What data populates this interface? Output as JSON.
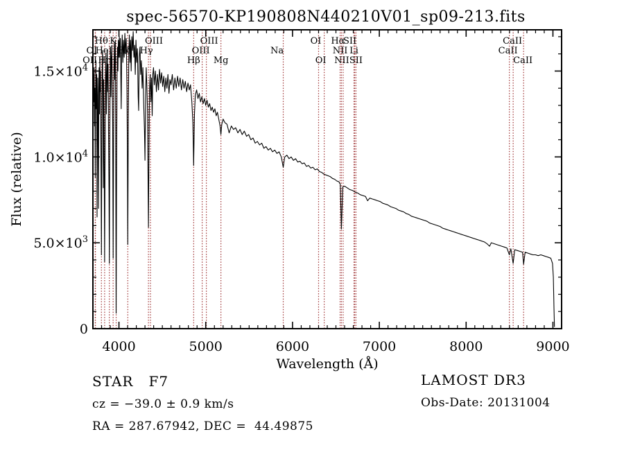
{
  "title": "spec-56570-KP190808N440210V01_sp09-213.fits",
  "footer": {
    "class_line": "STAR   F7",
    "cz_line": "cz = −39.0 ± 0.9 km/s",
    "radec_line": "RA = 287.67942, DEC =  44.49875",
    "survey": "LAMOST DR3",
    "obs_date": "Obs-Date: 20131004"
  },
  "chart_data": {
    "type": "line",
    "title": "spec-56570-KP190808N440210V01_sp09-213.fits",
    "xlabel": "Wavelength (Å)",
    "ylabel": "Flux (relative)",
    "xlim": [
      3700,
      9100
    ],
    "ylim": [
      0,
      17400
    ],
    "grid": false,
    "x_major_ticks": [
      4000,
      5000,
      6000,
      7000,
      8000,
      9000
    ],
    "x_minor_step": 100,
    "y_major_ticks": [
      {
        "v": 0,
        "m": "0",
        "e": ""
      },
      {
        "v": 5000,
        "m": "5.0×10",
        "e": "3"
      },
      {
        "v": 10000,
        "m": "1.0×10",
        "e": "4"
      },
      {
        "v": 15000,
        "m": "1.5×10",
        "e": "4"
      }
    ],
    "y_minor_step": 1000,
    "line_color": "#000000",
    "marker_color": "#9e3132",
    "spectral_lines": [
      {
        "label": "Hθ",
        "wavelength": 3798,
        "row": 1,
        "dx": 0
      },
      {
        "label": "K",
        "wavelength": 3933,
        "row": 1,
        "dx": 0
      },
      {
        "label": "OIII",
        "wavelength": 4363,
        "row": 1,
        "dx": 5
      },
      {
        "label": "OIII",
        "wavelength": 5007,
        "row": 1,
        "dx": 4
      },
      {
        "label": "OI",
        "wavelength": 6300,
        "row": 1,
        "dx": -4
      },
      {
        "label": "Hα",
        "wavelength": 6563,
        "row": 1,
        "dx": -5
      },
      {
        "label": "SII",
        "wavelength": 6716,
        "row": 1,
        "dx": -7
      },
      {
        "label": "CaII",
        "wavelength": 8542,
        "row": 1,
        "dx": -1
      },
      {
        "label": "OI",
        "wavelength": 3727,
        "row": 2,
        "dx": -5
      },
      {
        "label": "HeI",
        "wavelength": 3889,
        "row": 2,
        "dx": -8
      },
      {
        "label": "Hδ",
        "wavelength": 4102,
        "row": 2,
        "dx": -4
      },
      {
        "label": "Hγ",
        "wavelength": 4340,
        "row": 2,
        "dx": -3
      },
      {
        "label": "OIII",
        "wavelength": 4959,
        "row": 2,
        "dx": -2
      },
      {
        "label": "Na",
        "wavelength": 5893,
        "row": 2,
        "dx": -9
      },
      {
        "label": "NII",
        "wavelength": 6548,
        "row": 2,
        "dx": 0
      },
      {
        "label": "Li",
        "wavelength": 6708,
        "row": 2,
        "dx": 0
      },
      {
        "label": "CaII",
        "wavelength": 8498,
        "row": 2,
        "dx": -2
      },
      {
        "label": "OII",
        "wavelength": 3729,
        "row": 3,
        "dx": -8
      },
      {
        "label": "Hη",
        "wavelength": 3835,
        "row": 3,
        "dx": 0
      },
      {
        "label": "H",
        "wavelength": 3968,
        "row": 3,
        "dx": -4
      },
      {
        "label": "Hβ",
        "wavelength": 4861,
        "row": 3,
        "dx": 0
      },
      {
        "label": "Mg",
        "wavelength": 5175,
        "row": 3,
        "dx": 0
      },
      {
        "label": "OI",
        "wavelength": 6365,
        "row": 3,
        "dx": -5
      },
      {
        "label": "NII",
        "wavelength": 6583,
        "row": 3,
        "dx": -2
      },
      {
        "label": "SII",
        "wavelength": 6731,
        "row": 3,
        "dx": 0
      },
      {
        "label": "CaII",
        "wavelength": 8662,
        "row": 3,
        "dx": -1
      }
    ],
    "points": [
      [
        3700,
        100
      ],
      [
        3703,
        12500
      ],
      [
        3706,
        14800
      ],
      [
        3710,
        13200
      ],
      [
        3714,
        15200
      ],
      [
        3718,
        11800
      ],
      [
        3722,
        14000
      ],
      [
        3727,
        8800
      ],
      [
        3731,
        13500
      ],
      [
        3735,
        15600
      ],
      [
        3739,
        12800
      ],
      [
        3744,
        14800
      ],
      [
        3748,
        6500
      ],
      [
        3752,
        13000
      ],
      [
        3756,
        14600
      ],
      [
        3760,
        10500
      ],
      [
        3764,
        7000
      ],
      [
        3768,
        13800
      ],
      [
        3772,
        15200
      ],
      [
        3776,
        12500
      ],
      [
        3780,
        15800
      ],
      [
        3784,
        13800
      ],
      [
        3788,
        15000
      ],
      [
        3792,
        11000
      ],
      [
        3798,
        4300
      ],
      [
        3803,
        12000
      ],
      [
        3808,
        15600
      ],
      [
        3812,
        16200
      ],
      [
        3816,
        13500
      ],
      [
        3820,
        8200
      ],
      [
        3824,
        14500
      ],
      [
        3828,
        12000
      ],
      [
        3835,
        3900
      ],
      [
        3840,
        9500
      ],
      [
        3845,
        14800
      ],
      [
        3850,
        16000
      ],
      [
        3855,
        12500
      ],
      [
        3860,
        14500
      ],
      [
        3865,
        16200
      ],
      [
        3870,
        13800
      ],
      [
        3875,
        15400
      ],
      [
        3880,
        11500
      ],
      [
        3885,
        8000
      ],
      [
        3889,
        3800
      ],
      [
        3894,
        10500
      ],
      [
        3898,
        14500
      ],
      [
        3903,
        16300
      ],
      [
        3908,
        13500
      ],
      [
        3913,
        15800
      ],
      [
        3918,
        16500
      ],
      [
        3923,
        14200
      ],
      [
        3928,
        12000
      ],
      [
        3933,
        4100
      ],
      [
        3938,
        11000
      ],
      [
        3943,
        15200
      ],
      [
        3948,
        16600
      ],
      [
        3953,
        14500
      ],
      [
        3958,
        16800
      ],
      [
        3962,
        12500
      ],
      [
        3968,
        900
      ],
      [
        3973,
        9500
      ],
      [
        3978,
        14500
      ],
      [
        3983,
        16400
      ],
      [
        3988,
        15000
      ],
      [
        3993,
        16800
      ],
      [
        3998,
        15800
      ],
      [
        4004,
        17000
      ],
      [
        4010,
        15800
      ],
      [
        4016,
        16900
      ],
      [
        4022,
        14500
      ],
      [
        4026,
        12800
      ],
      [
        4032,
        16200
      ],
      [
        4038,
        17100
      ],
      [
        4045,
        15500
      ],
      [
        4052,
        16800
      ],
      [
        4060,
        15800
      ],
      [
        4068,
        17200
      ],
      [
        4076,
        16000
      ],
      [
        4084,
        16900
      ],
      [
        4092,
        14000
      ],
      [
        4097,
        10500
      ],
      [
        4102,
        4900
      ],
      [
        4108,
        12500
      ],
      [
        4114,
        16000
      ],
      [
        4120,
        17100
      ],
      [
        4127,
        15500
      ],
      [
        4134,
        16800
      ],
      [
        4141,
        15000
      ],
      [
        4148,
        17000
      ],
      [
        4156,
        16200
      ],
      [
        4164,
        17300
      ],
      [
        4172,
        15800
      ],
      [
        4180,
        16500
      ],
      [
        4188,
        14800
      ],
      [
        4196,
        16800
      ],
      [
        4205,
        15500
      ],
      [
        4213,
        16300
      ],
      [
        4222,
        13500
      ],
      [
        4227,
        12700
      ],
      [
        4234,
        15800
      ],
      [
        4242,
        16400
      ],
      [
        4250,
        14800
      ],
      [
        4258,
        15600
      ],
      [
        4267,
        14000
      ],
      [
        4276,
        15200
      ],
      [
        4285,
        13200
      ],
      [
        4294,
        11500
      ],
      [
        4300,
        9800
      ],
      [
        4307,
        13500
      ],
      [
        4314,
        15200
      ],
      [
        4322,
        14000
      ],
      [
        4330,
        12500
      ],
      [
        4335,
        9000
      ],
      [
        4340,
        5900
      ],
      [
        4346,
        10500
      ],
      [
        4352,
        13800
      ],
      [
        4360,
        14800
      ],
      [
        4368,
        13200
      ],
      [
        4376,
        14600
      ],
      [
        4383,
        12400
      ],
      [
        4390,
        14800
      ],
      [
        4398,
        15200
      ],
      [
        4408,
        14200
      ],
      [
        4420,
        15000
      ],
      [
        4432,
        13800
      ],
      [
        4444,
        14800
      ],
      [
        4456,
        13900
      ],
      [
        4468,
        15100
      ],
      [
        4480,
        14300
      ],
      [
        4492,
        14900
      ],
      [
        4504,
        14100
      ],
      [
        4516,
        14700
      ],
      [
        4528,
        13800
      ],
      [
        4540,
        14600
      ],
      [
        4552,
        14000
      ],
      [
        4564,
        14800
      ],
      [
        4576,
        13700
      ],
      [
        4588,
        14500
      ],
      [
        4600,
        14200
      ],
      [
        4615,
        14800
      ],
      [
        4630,
        13900
      ],
      [
        4645,
        14600
      ],
      [
        4660,
        14000
      ],
      [
        4675,
        14700
      ],
      [
        4690,
        14100
      ],
      [
        4705,
        14600
      ],
      [
        4720,
        13900
      ],
      [
        4735,
        14500
      ],
      [
        4750,
        14000
      ],
      [
        4765,
        14400
      ],
      [
        4780,
        13800
      ],
      [
        4795,
        14300
      ],
      [
        4810,
        13900
      ],
      [
        4825,
        14200
      ],
      [
        4840,
        13200
      ],
      [
        4852,
        12000
      ],
      [
        4861,
        9500
      ],
      [
        4870,
        12500
      ],
      [
        4880,
        13600
      ],
      [
        4895,
        13900
      ],
      [
        4910,
        13400
      ],
      [
        4925,
        13700
      ],
      [
        4940,
        13200
      ],
      [
        4955,
        13500
      ],
      [
        4970,
        13100
      ],
      [
        4985,
        13400
      ],
      [
        5000,
        13000
      ],
      [
        5015,
        13300
      ],
      [
        5030,
        12900
      ],
      [
        5045,
        13100
      ],
      [
        5060,
        12700
      ],
      [
        5075,
        12900
      ],
      [
        5090,
        12600
      ],
      [
        5105,
        12800
      ],
      [
        5120,
        12400
      ],
      [
        5135,
        12600
      ],
      [
        5150,
        12200
      ],
      [
        5165,
        11800
      ],
      [
        5175,
        11300
      ],
      [
        5185,
        11900
      ],
      [
        5200,
        12200
      ],
      [
        5220,
        12000
      ],
      [
        5245,
        11900
      ],
      [
        5270,
        11400
      ],
      [
        5295,
        11800
      ],
      [
        5320,
        11600
      ],
      [
        5345,
        11700
      ],
      [
        5370,
        11400
      ],
      [
        5395,
        11600
      ],
      [
        5420,
        11300
      ],
      [
        5445,
        11500
      ],
      [
        5470,
        11200
      ],
      [
        5495,
        11300
      ],
      [
        5520,
        11000
      ],
      [
        5545,
        11100
      ],
      [
        5570,
        10800
      ],
      [
        5595,
        10900
      ],
      [
        5620,
        10700
      ],
      [
        5645,
        10800
      ],
      [
        5670,
        10500
      ],
      [
        5695,
        10600
      ],
      [
        5720,
        10400
      ],
      [
        5745,
        10500
      ],
      [
        5770,
        10300
      ],
      [
        5795,
        10400
      ],
      [
        5820,
        10200
      ],
      [
        5845,
        10300
      ],
      [
        5870,
        10000
      ],
      [
        5893,
        9400
      ],
      [
        5910,
        10000
      ],
      [
        5935,
        10100
      ],
      [
        5960,
        9900
      ],
      [
        5985,
        10000
      ],
      [
        6010,
        9800
      ],
      [
        6035,
        9900
      ],
      [
        6060,
        9700
      ],
      [
        6085,
        9750
      ],
      [
        6110,
        9600
      ],
      [
        6135,
        9650
      ],
      [
        6160,
        9450
      ],
      [
        6185,
        9500
      ],
      [
        6210,
        9350
      ],
      [
        6235,
        9400
      ],
      [
        6260,
        9250
      ],
      [
        6285,
        9300
      ],
      [
        6310,
        9150
      ],
      [
        6335,
        9100
      ],
      [
        6360,
        9000
      ],
      [
        6385,
        8950
      ],
      [
        6410,
        8900
      ],
      [
        6435,
        8850
      ],
      [
        6460,
        8750
      ],
      [
        6485,
        8700
      ],
      [
        6510,
        8600
      ],
      [
        6535,
        8550
      ],
      [
        6550,
        8400
      ],
      [
        6563,
        5800
      ],
      [
        6578,
        8250
      ],
      [
        6600,
        8300
      ],
      [
        6630,
        8200
      ],
      [
        6660,
        8100
      ],
      [
        6690,
        8050
      ],
      [
        6720,
        7950
      ],
      [
        6750,
        7900
      ],
      [
        6780,
        7800
      ],
      [
        6810,
        7750
      ],
      [
        6840,
        7700
      ],
      [
        6865,
        7450
      ],
      [
        6890,
        7600
      ],
      [
        6920,
        7550
      ],
      [
        6950,
        7500
      ],
      [
        6980,
        7450
      ],
      [
        7010,
        7400
      ],
      [
        7040,
        7300
      ],
      [
        7070,
        7250
      ],
      [
        7100,
        7200
      ],
      [
        7130,
        7100
      ],
      [
        7160,
        7050
      ],
      [
        7190,
        7000
      ],
      [
        7220,
        6900
      ],
      [
        7250,
        6850
      ],
      [
        7280,
        6800
      ],
      [
        7310,
        6700
      ],
      [
        7340,
        6650
      ],
      [
        7370,
        6550
      ],
      [
        7400,
        6500
      ],
      [
        7430,
        6450
      ],
      [
        7460,
        6400
      ],
      [
        7490,
        6350
      ],
      [
        7520,
        6300
      ],
      [
        7550,
        6250
      ],
      [
        7580,
        6150
      ],
      [
        7610,
        6100
      ],
      [
        7640,
        6050
      ],
      [
        7670,
        6000
      ],
      [
        7700,
        5950
      ],
      [
        7730,
        5850
      ],
      [
        7760,
        5800
      ],
      [
        7790,
        5750
      ],
      [
        7820,
        5700
      ],
      [
        7850,
        5650
      ],
      [
        7880,
        5600
      ],
      [
        7910,
        5550
      ],
      [
        7940,
        5500
      ],
      [
        7970,
        5450
      ],
      [
        8000,
        5400
      ],
      [
        8030,
        5350
      ],
      [
        8060,
        5300
      ],
      [
        8090,
        5250
      ],
      [
        8120,
        5200
      ],
      [
        8150,
        5150
      ],
      [
        8180,
        5100
      ],
      [
        8210,
        5050
      ],
      [
        8240,
        4950
      ],
      [
        8270,
        4800
      ],
      [
        8290,
        5000
      ],
      [
        8320,
        4950
      ],
      [
        8350,
        4900
      ],
      [
        8380,
        4850
      ],
      [
        8410,
        4800
      ],
      [
        8440,
        4750
      ],
      [
        8470,
        4700
      ],
      [
        8498,
        4300
      ],
      [
        8515,
        4650
      ],
      [
        8542,
        3800
      ],
      [
        8560,
        4600
      ],
      [
        8590,
        4550
      ],
      [
        8620,
        4500
      ],
      [
        8650,
        4450
      ],
      [
        8662,
        3750
      ],
      [
        8680,
        4450
      ],
      [
        8710,
        4400
      ],
      [
        8740,
        4350
      ],
      [
        8770,
        4300
      ],
      [
        8800,
        4300
      ],
      [
        8830,
        4250
      ],
      [
        8860,
        4300
      ],
      [
        8890,
        4250
      ],
      [
        8920,
        4200
      ],
      [
        8950,
        4150
      ],
      [
        8975,
        4100
      ],
      [
        8995,
        3800
      ],
      [
        9005,
        3000
      ],
      [
        9012,
        1200
      ],
      [
        9018,
        100
      ]
    ]
  }
}
